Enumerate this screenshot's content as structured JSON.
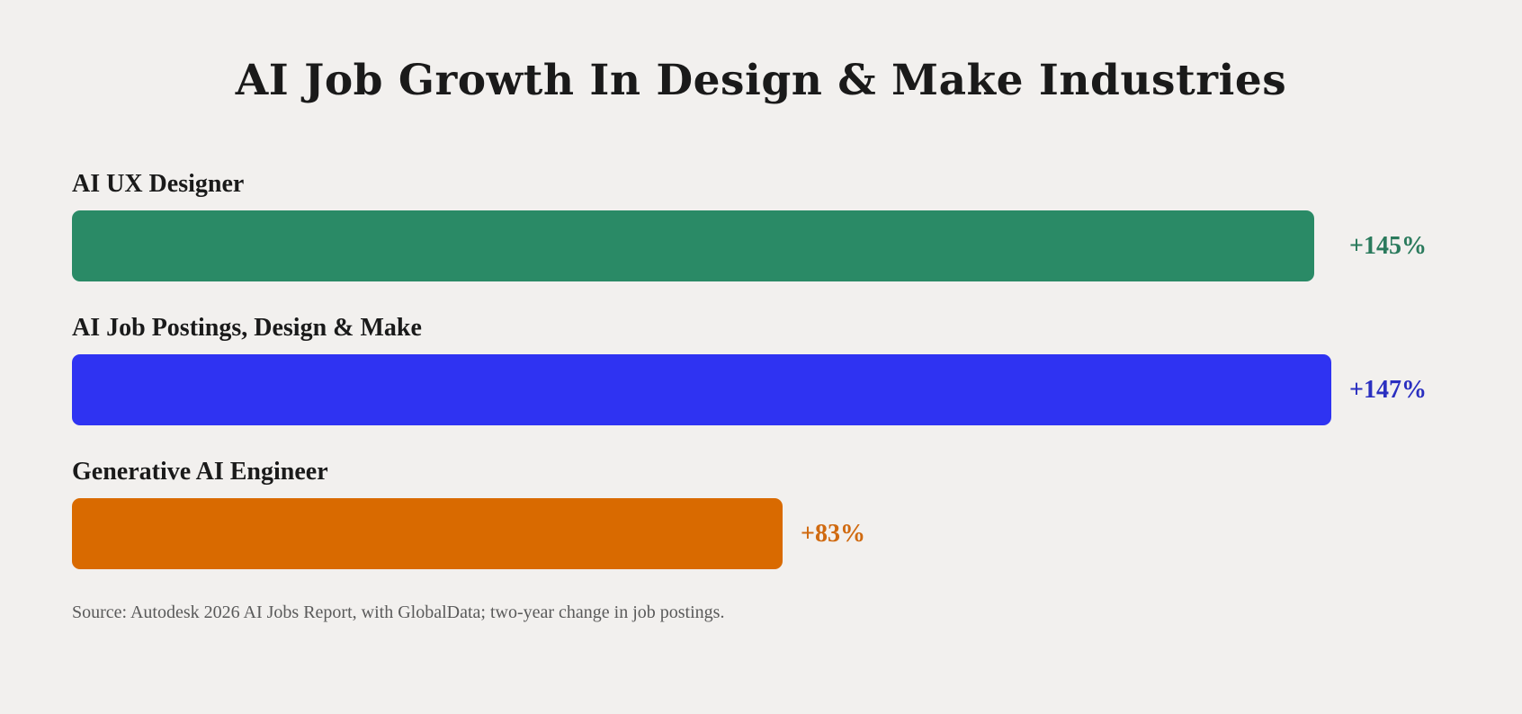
{
  "chart_data": {
    "type": "bar",
    "orientation": "horizontal",
    "title": "AI Job Growth In Design & Make Industries",
    "categories": [
      "AI UX Designer",
      "AI Job Postings, Design & Make",
      "Generative AI Engineer"
    ],
    "values": [
      145,
      147,
      83
    ],
    "value_labels": [
      "+145%",
      "+147%",
      "+83%"
    ],
    "unit": "%",
    "colors": [
      "#2a8a66",
      "#2f33f2",
      "#d96a00"
    ],
    "label_colors": [
      "#2a7a5c",
      "#2a2fc0",
      "#d06a10"
    ],
    "xlim": [
      0,
      147
    ],
    "grid": false,
    "legend": "none",
    "source": "Source: Autodesk 2026 AI Jobs Report, with GlobalData; two-year change in job postings."
  }
}
